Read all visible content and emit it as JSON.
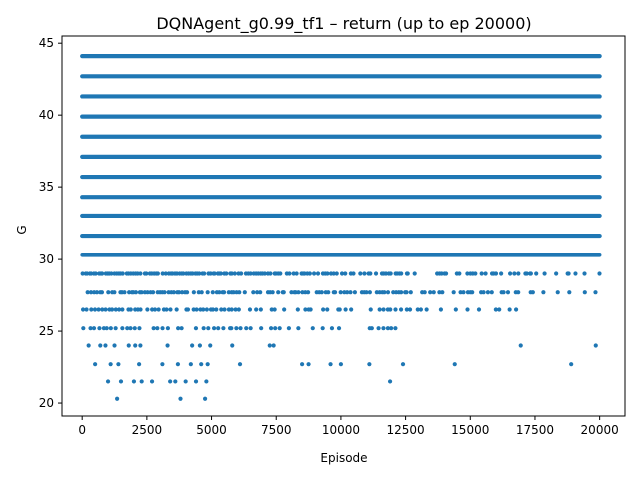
{
  "chart_data": {
    "type": "scatter",
    "title": "DQNAgent_g0.99_tf1 – return (up to ep 20000)",
    "xlabel": "Episode",
    "ylabel": "G",
    "xlim": [
      -780,
      20980
    ],
    "ylim": [
      19.1,
      45.5
    ],
    "xticks": [
      0,
      2500,
      5000,
      7500,
      10000,
      12500,
      15000,
      17500,
      20000
    ],
    "xtick_labels": [
      "0",
      "2500",
      "5000",
      "7500",
      "10000",
      "12500",
      "15000",
      "17500",
      "20000"
    ],
    "yticks": [
      20,
      25,
      30,
      35,
      40,
      45
    ],
    "ytick_labels": [
      "20",
      "25",
      "30",
      "35",
      "40",
      "45"
    ],
    "grid": false,
    "legend": "none",
    "marker_color": "#1f77b4",
    "series": [
      {
        "levels": [
          {
            "y": 44.1,
            "coverage": 1.0
          },
          {
            "y": 42.7,
            "coverage": 1.0
          },
          {
            "y": 41.3,
            "coverage": 1.0
          },
          {
            "y": 39.9,
            "coverage": 1.0
          },
          {
            "y": 38.5,
            "coverage": 1.0
          },
          {
            "y": 37.1,
            "coverage": 1.0
          },
          {
            "y": 35.7,
            "coverage": 1.0
          },
          {
            "y": 34.3,
            "coverage": 1.0
          },
          {
            "y": 33.0,
            "coverage": 1.0
          },
          {
            "y": 31.6,
            "coverage": 1.0
          },
          {
            "y": 30.3,
            "coverage": 1.0
          },
          {
            "y": 29.0,
            "coverage": 1.0
          },
          {
            "y": 27.7,
            "coverage": 1.0
          },
          {
            "y": 26.5,
            "coverage": 1.0
          },
          {
            "y": 25.2,
            "coverage": 1.0
          },
          {
            "y": 24.0,
            "coverage": 1.0
          },
          {
            "y": 22.7,
            "coverage": 1.0
          },
          {
            "y": 21.5,
            "coverage": 1.0
          },
          {
            "y": 20.3,
            "coverage": 1.0
          }
        ],
        "sparse_points": [
          {
            "x": 1350,
            "y": 20.3
          },
          {
            "x": 3800,
            "y": 20.3
          },
          {
            "x": 4750,
            "y": 20.3
          },
          {
            "x": 1000,
            "y": 21.5
          },
          {
            "x": 1500,
            "y": 21.5
          },
          {
            "x": 2000,
            "y": 21.5
          },
          {
            "x": 2300,
            "y": 21.5
          },
          {
            "x": 2700,
            "y": 21.5
          },
          {
            "x": 3400,
            "y": 21.5
          },
          {
            "x": 3600,
            "y": 21.5
          },
          {
            "x": 4000,
            "y": 21.5
          },
          {
            "x": 4400,
            "y": 21.5
          },
          {
            "x": 4800,
            "y": 21.5
          },
          {
            "x": 11900,
            "y": 21.5
          },
          {
            "x": 500,
            "y": 22.7
          },
          {
            "x": 1100,
            "y": 22.7
          },
          {
            "x": 1400,
            "y": 22.7
          },
          {
            "x": 2200,
            "y": 22.7
          },
          {
            "x": 3100,
            "y": 22.7
          },
          {
            "x": 3700,
            "y": 22.7
          },
          {
            "x": 4200,
            "y": 22.7
          },
          {
            "x": 4600,
            "y": 22.7
          },
          {
            "x": 4850,
            "y": 22.7
          },
          {
            "x": 6100,
            "y": 22.7
          },
          {
            "x": 8500,
            "y": 22.7
          },
          {
            "x": 8750,
            "y": 22.7
          },
          {
            "x": 9600,
            "y": 22.7
          },
          {
            "x": 10000,
            "y": 22.7
          },
          {
            "x": 11100,
            "y": 22.7
          },
          {
            "x": 12400,
            "y": 22.7
          },
          {
            "x": 14400,
            "y": 22.7
          },
          {
            "x": 18900,
            "y": 22.7
          },
          {
            "x": 250,
            "y": 24.0
          },
          {
            "x": 700,
            "y": 24.0
          },
          {
            "x": 900,
            "y": 24.0
          },
          {
            "x": 1250,
            "y": 24.0
          },
          {
            "x": 1800,
            "y": 24.0
          },
          {
            "x": 2050,
            "y": 24.0
          },
          {
            "x": 2250,
            "y": 24.0
          },
          {
            "x": 3300,
            "y": 24.0
          },
          {
            "x": 4250,
            "y": 24.0
          },
          {
            "x": 4550,
            "y": 24.0
          },
          {
            "x": 4950,
            "y": 24.0
          },
          {
            "x": 5800,
            "y": 24.0
          },
          {
            "x": 7250,
            "y": 24.0
          },
          {
            "x": 7400,
            "y": 24.0
          },
          {
            "x": 16950,
            "y": 24.0
          },
          {
            "x": 19850,
            "y": 24.0
          }
        ],
        "medium_levels": [
          {
            "y": 25.2,
            "x_from": 0,
            "x_to": 13000,
            "step": 180
          },
          {
            "y": 26.5,
            "x_from": 0,
            "x_to": 17800,
            "step": 140
          },
          {
            "y": 27.7,
            "x_from": 200,
            "x_to": 19900,
            "step": 110
          },
          {
            "y": 29.0,
            "x_from": 0,
            "x_to": 20000,
            "step": 85
          }
        ]
      }
    ]
  }
}
